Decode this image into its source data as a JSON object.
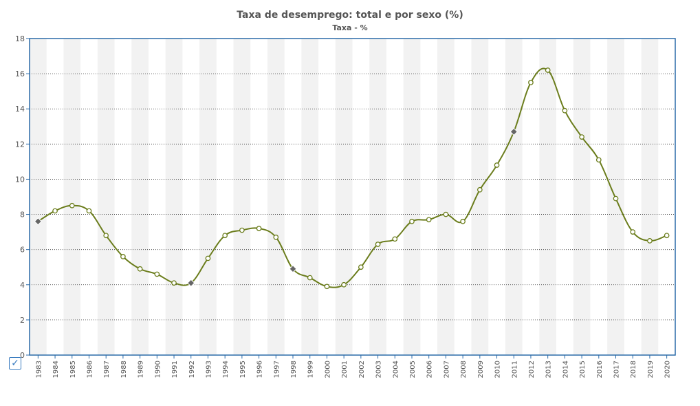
{
  "chart_data": {
    "type": "line",
    "title": "Taxa de desemprego: total e por sexo (%)",
    "subtitle": "Taxa - %",
    "categories": [
      "1983",
      "1984",
      "1985",
      "1986",
      "1987",
      "1988",
      "1989",
      "1990",
      "1991",
      "1992",
      "1993",
      "1994",
      "1995",
      "1996",
      "1997",
      "1998",
      "1999",
      "2000",
      "2001",
      "2002",
      "2003",
      "2004",
      "2005",
      "2006",
      "2007",
      "2008",
      "2009",
      "2010",
      "2011",
      "2012",
      "2013",
      "2014",
      "2015",
      "2016",
      "2017",
      "2018",
      "2019",
      "2020"
    ],
    "series": [
      {
        "values": [
          7.6,
          8.2,
          8.5,
          8.2,
          6.8,
          5.6,
          4.9,
          4.6,
          4.1,
          4.1,
          5.5,
          6.8,
          7.1,
          7.2,
          6.7,
          4.9,
          4.4,
          3.9,
          4.0,
          5.0,
          6.3,
          6.6,
          7.6,
          7.7,
          8.0,
          7.6,
          9.4,
          10.8,
          12.7,
          15.5,
          16.2,
          13.9,
          12.4,
          11.1,
          8.9,
          7.0,
          6.5,
          6.8
        ],
        "markers": [
          "diamond",
          "circle",
          "circle",
          "circle",
          "circle",
          "circle",
          "circle",
          "circle",
          "circle",
          "diamond",
          "circle",
          "circle",
          "circle",
          "circle",
          "circle",
          "diamond",
          "circle",
          "circle",
          "circle",
          "circle",
          "circle",
          "circle",
          "circle",
          "circle",
          "circle",
          "circle",
          "circle",
          "circle",
          "diamond",
          "circle",
          "circle",
          "circle",
          "circle",
          "circle",
          "circle",
          "circle",
          "circle",
          "circle"
        ]
      }
    ],
    "ylim": [
      0,
      18
    ],
    "yticks": [
      0,
      2,
      4,
      6,
      8,
      10,
      12,
      14,
      16,
      18
    ],
    "grid": true,
    "colors": {
      "line": "#6b7d1c",
      "axis": "#2a6aa8",
      "band": "#f2f2f2",
      "diamond": "#666666",
      "text": "#555555"
    }
  },
  "controls": {
    "checkbox_glyph": "✓"
  }
}
